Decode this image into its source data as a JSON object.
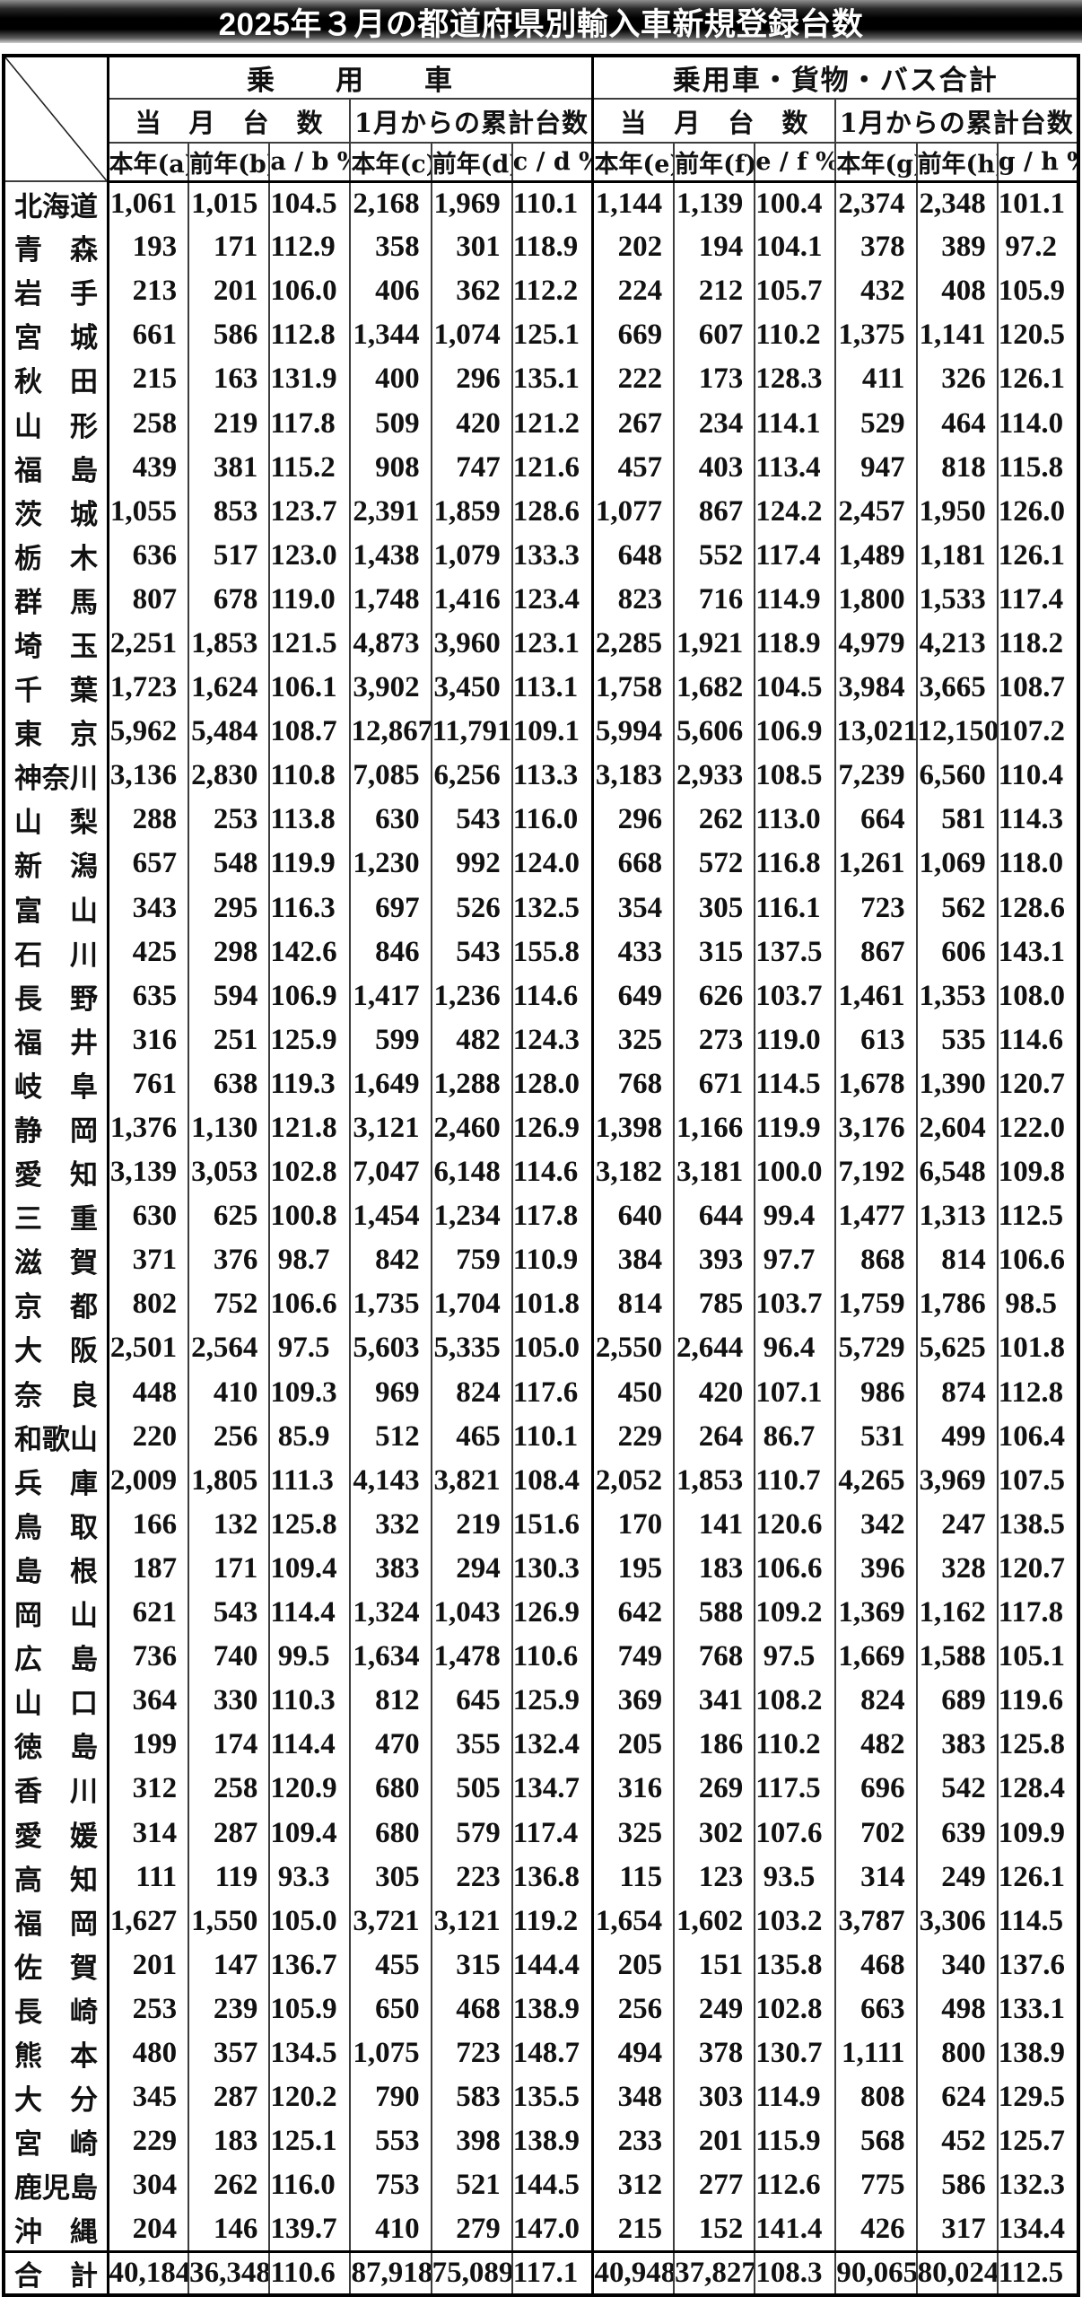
{
  "title": "2025年３月の都道府県別輸入車新規登録台数",
  "table": {
    "group_headers": [
      "乗　　用　　車",
      "乗用車・貨物・バス合計"
    ],
    "subgroup_headers": [
      "当　月　台　数",
      "1月からの累計台数",
      "当　月　台　数",
      "1月からの累計台数"
    ],
    "column_headers": [
      "本年(a)",
      "前年(b)",
      "a / b %",
      "本年(c)",
      "前年(d)",
      "c / d %",
      "本年(e)",
      "前年(f)",
      "e / f %",
      "本年(g)",
      "前年(h)",
      "g / h %"
    ],
    "rows": [
      {
        "name": "北海道",
        "values": [
          "1,061",
          "1,015",
          "104.5",
          "2,168",
          "1,969",
          "110.1",
          "1,144",
          "1,139",
          "100.4",
          "2,374",
          "2,348",
          "101.1"
        ]
      },
      {
        "name": "青　森",
        "values": [
          "193",
          "171",
          "112.9",
          "358",
          "301",
          "118.9",
          "202",
          "194",
          "104.1",
          "378",
          "389",
          "97.2"
        ]
      },
      {
        "name": "岩　手",
        "values": [
          "213",
          "201",
          "106.0",
          "406",
          "362",
          "112.2",
          "224",
          "212",
          "105.7",
          "432",
          "408",
          "105.9"
        ]
      },
      {
        "name": "宮　城",
        "values": [
          "661",
          "586",
          "112.8",
          "1,344",
          "1,074",
          "125.1",
          "669",
          "607",
          "110.2",
          "1,375",
          "1,141",
          "120.5"
        ]
      },
      {
        "name": "秋　田",
        "values": [
          "215",
          "163",
          "131.9",
          "400",
          "296",
          "135.1",
          "222",
          "173",
          "128.3",
          "411",
          "326",
          "126.1"
        ]
      },
      {
        "name": "山　形",
        "values": [
          "258",
          "219",
          "117.8",
          "509",
          "420",
          "121.2",
          "267",
          "234",
          "114.1",
          "529",
          "464",
          "114.0"
        ]
      },
      {
        "name": "福　島",
        "values": [
          "439",
          "381",
          "115.2",
          "908",
          "747",
          "121.6",
          "457",
          "403",
          "113.4",
          "947",
          "818",
          "115.8"
        ]
      },
      {
        "name": "茨　城",
        "values": [
          "1,055",
          "853",
          "123.7",
          "2,391",
          "1,859",
          "128.6",
          "1,077",
          "867",
          "124.2",
          "2,457",
          "1,950",
          "126.0"
        ]
      },
      {
        "name": "栃　木",
        "values": [
          "636",
          "517",
          "123.0",
          "1,438",
          "1,079",
          "133.3",
          "648",
          "552",
          "117.4",
          "1,489",
          "1,181",
          "126.1"
        ]
      },
      {
        "name": "群　馬",
        "values": [
          "807",
          "678",
          "119.0",
          "1,748",
          "1,416",
          "123.4",
          "823",
          "716",
          "114.9",
          "1,800",
          "1,533",
          "117.4"
        ]
      },
      {
        "name": "埼　玉",
        "values": [
          "2,251",
          "1,853",
          "121.5",
          "4,873",
          "3,960",
          "123.1",
          "2,285",
          "1,921",
          "118.9",
          "4,979",
          "4,213",
          "118.2"
        ]
      },
      {
        "name": "千　葉",
        "values": [
          "1,723",
          "1,624",
          "106.1",
          "3,902",
          "3,450",
          "113.1",
          "1,758",
          "1,682",
          "104.5",
          "3,984",
          "3,665",
          "108.7"
        ]
      },
      {
        "name": "東　京",
        "values": [
          "5,962",
          "5,484",
          "108.7",
          "12,867",
          "11,791",
          "109.1",
          "5,994",
          "5,606",
          "106.9",
          "13,021",
          "12,150",
          "107.2"
        ]
      },
      {
        "name": "神奈川",
        "values": [
          "3,136",
          "2,830",
          "110.8",
          "7,085",
          "6,256",
          "113.3",
          "3,183",
          "2,933",
          "108.5",
          "7,239",
          "6,560",
          "110.4"
        ]
      },
      {
        "name": "山　梨",
        "values": [
          "288",
          "253",
          "113.8",
          "630",
          "543",
          "116.0",
          "296",
          "262",
          "113.0",
          "664",
          "581",
          "114.3"
        ]
      },
      {
        "name": "新　潟",
        "values": [
          "657",
          "548",
          "119.9",
          "1,230",
          "992",
          "124.0",
          "668",
          "572",
          "116.8",
          "1,261",
          "1,069",
          "118.0"
        ]
      },
      {
        "name": "富　山",
        "values": [
          "343",
          "295",
          "116.3",
          "697",
          "526",
          "132.5",
          "354",
          "305",
          "116.1",
          "723",
          "562",
          "128.6"
        ]
      },
      {
        "name": "石　川",
        "values": [
          "425",
          "298",
          "142.6",
          "846",
          "543",
          "155.8",
          "433",
          "315",
          "137.5",
          "867",
          "606",
          "143.1"
        ]
      },
      {
        "name": "長　野",
        "values": [
          "635",
          "594",
          "106.9",
          "1,417",
          "1,236",
          "114.6",
          "649",
          "626",
          "103.7",
          "1,461",
          "1,353",
          "108.0"
        ]
      },
      {
        "name": "福　井",
        "values": [
          "316",
          "251",
          "125.9",
          "599",
          "482",
          "124.3",
          "325",
          "273",
          "119.0",
          "613",
          "535",
          "114.6"
        ]
      },
      {
        "name": "岐　阜",
        "values": [
          "761",
          "638",
          "119.3",
          "1,649",
          "1,288",
          "128.0",
          "768",
          "671",
          "114.5",
          "1,678",
          "1,390",
          "120.7"
        ]
      },
      {
        "name": "静　岡",
        "values": [
          "1,376",
          "1,130",
          "121.8",
          "3,121",
          "2,460",
          "126.9",
          "1,398",
          "1,166",
          "119.9",
          "3,176",
          "2,604",
          "122.0"
        ]
      },
      {
        "name": "愛　知",
        "values": [
          "3,139",
          "3,053",
          "102.8",
          "7,047",
          "6,148",
          "114.6",
          "3,182",
          "3,181",
          "100.0",
          "7,192",
          "6,548",
          "109.8"
        ]
      },
      {
        "name": "三　重",
        "values": [
          "630",
          "625",
          "100.8",
          "1,454",
          "1,234",
          "117.8",
          "640",
          "644",
          "99.4",
          "1,477",
          "1,313",
          "112.5"
        ]
      },
      {
        "name": "滋　賀",
        "values": [
          "371",
          "376",
          "98.7",
          "842",
          "759",
          "110.9",
          "384",
          "393",
          "97.7",
          "868",
          "814",
          "106.6"
        ]
      },
      {
        "name": "京　都",
        "values": [
          "802",
          "752",
          "106.6",
          "1,735",
          "1,704",
          "101.8",
          "814",
          "785",
          "103.7",
          "1,759",
          "1,786",
          "98.5"
        ]
      },
      {
        "name": "大　阪",
        "values": [
          "2,501",
          "2,564",
          "97.5",
          "5,603",
          "5,335",
          "105.0",
          "2,550",
          "2,644",
          "96.4",
          "5,729",
          "5,625",
          "101.8"
        ]
      },
      {
        "name": "奈　良",
        "values": [
          "448",
          "410",
          "109.3",
          "969",
          "824",
          "117.6",
          "450",
          "420",
          "107.1",
          "986",
          "874",
          "112.8"
        ]
      },
      {
        "name": "和歌山",
        "values": [
          "220",
          "256",
          "85.9",
          "512",
          "465",
          "110.1",
          "229",
          "264",
          "86.7",
          "531",
          "499",
          "106.4"
        ]
      },
      {
        "name": "兵　庫",
        "values": [
          "2,009",
          "1,805",
          "111.3",
          "4,143",
          "3,821",
          "108.4",
          "2,052",
          "1,853",
          "110.7",
          "4,265",
          "3,969",
          "107.5"
        ]
      },
      {
        "name": "鳥　取",
        "values": [
          "166",
          "132",
          "125.8",
          "332",
          "219",
          "151.6",
          "170",
          "141",
          "120.6",
          "342",
          "247",
          "138.5"
        ]
      },
      {
        "name": "島　根",
        "values": [
          "187",
          "171",
          "109.4",
          "383",
          "294",
          "130.3",
          "195",
          "183",
          "106.6",
          "396",
          "328",
          "120.7"
        ]
      },
      {
        "name": "岡　山",
        "values": [
          "621",
          "543",
          "114.4",
          "1,324",
          "1,043",
          "126.9",
          "642",
          "588",
          "109.2",
          "1,369",
          "1,162",
          "117.8"
        ]
      },
      {
        "name": "広　島",
        "values": [
          "736",
          "740",
          "99.5",
          "1,634",
          "1,478",
          "110.6",
          "749",
          "768",
          "97.5",
          "1,669",
          "1,588",
          "105.1"
        ]
      },
      {
        "name": "山　口",
        "values": [
          "364",
          "330",
          "110.3",
          "812",
          "645",
          "125.9",
          "369",
          "341",
          "108.2",
          "824",
          "689",
          "119.6"
        ]
      },
      {
        "name": "徳　島",
        "values": [
          "199",
          "174",
          "114.4",
          "470",
          "355",
          "132.4",
          "205",
          "186",
          "110.2",
          "482",
          "383",
          "125.8"
        ]
      },
      {
        "name": "香　川",
        "values": [
          "312",
          "258",
          "120.9",
          "680",
          "505",
          "134.7",
          "316",
          "269",
          "117.5",
          "696",
          "542",
          "128.4"
        ]
      },
      {
        "name": "愛　媛",
        "values": [
          "314",
          "287",
          "109.4",
          "680",
          "579",
          "117.4",
          "325",
          "302",
          "107.6",
          "702",
          "639",
          "109.9"
        ]
      },
      {
        "name": "高　知",
        "values": [
          "111",
          "119",
          "93.3",
          "305",
          "223",
          "136.8",
          "115",
          "123",
          "93.5",
          "314",
          "249",
          "126.1"
        ]
      },
      {
        "name": "福　岡",
        "values": [
          "1,627",
          "1,550",
          "105.0",
          "3,721",
          "3,121",
          "119.2",
          "1,654",
          "1,602",
          "103.2",
          "3,787",
          "3,306",
          "114.5"
        ]
      },
      {
        "name": "佐　賀",
        "values": [
          "201",
          "147",
          "136.7",
          "455",
          "315",
          "144.4",
          "205",
          "151",
          "135.8",
          "468",
          "340",
          "137.6"
        ]
      },
      {
        "name": "長　崎",
        "values": [
          "253",
          "239",
          "105.9",
          "650",
          "468",
          "138.9",
          "256",
          "249",
          "102.8",
          "663",
          "498",
          "133.1"
        ]
      },
      {
        "name": "熊　本",
        "values": [
          "480",
          "357",
          "134.5",
          "1,075",
          "723",
          "148.7",
          "494",
          "378",
          "130.7",
          "1,111",
          "800",
          "138.9"
        ]
      },
      {
        "name": "大　分",
        "values": [
          "345",
          "287",
          "120.2",
          "790",
          "583",
          "135.5",
          "348",
          "303",
          "114.9",
          "808",
          "624",
          "129.5"
        ]
      },
      {
        "name": "宮　崎",
        "values": [
          "229",
          "183",
          "125.1",
          "553",
          "398",
          "138.9",
          "233",
          "201",
          "115.9",
          "568",
          "452",
          "125.7"
        ]
      },
      {
        "name": "鹿児島",
        "values": [
          "304",
          "262",
          "116.0",
          "753",
          "521",
          "144.5",
          "312",
          "277",
          "112.6",
          "775",
          "586",
          "132.3"
        ]
      },
      {
        "name": "沖　縄",
        "values": [
          "204",
          "146",
          "139.7",
          "410",
          "279",
          "147.0",
          "215",
          "152",
          "141.4",
          "426",
          "317",
          "134.4"
        ]
      }
    ],
    "total": {
      "name": "合　計",
      "values": [
        "40,184",
        "36,348",
        "110.6",
        "87,918",
        "75,089",
        "117.1",
        "40,948",
        "37,827",
        "108.3",
        "90,065",
        "80,024",
        "112.5"
      ]
    }
  }
}
